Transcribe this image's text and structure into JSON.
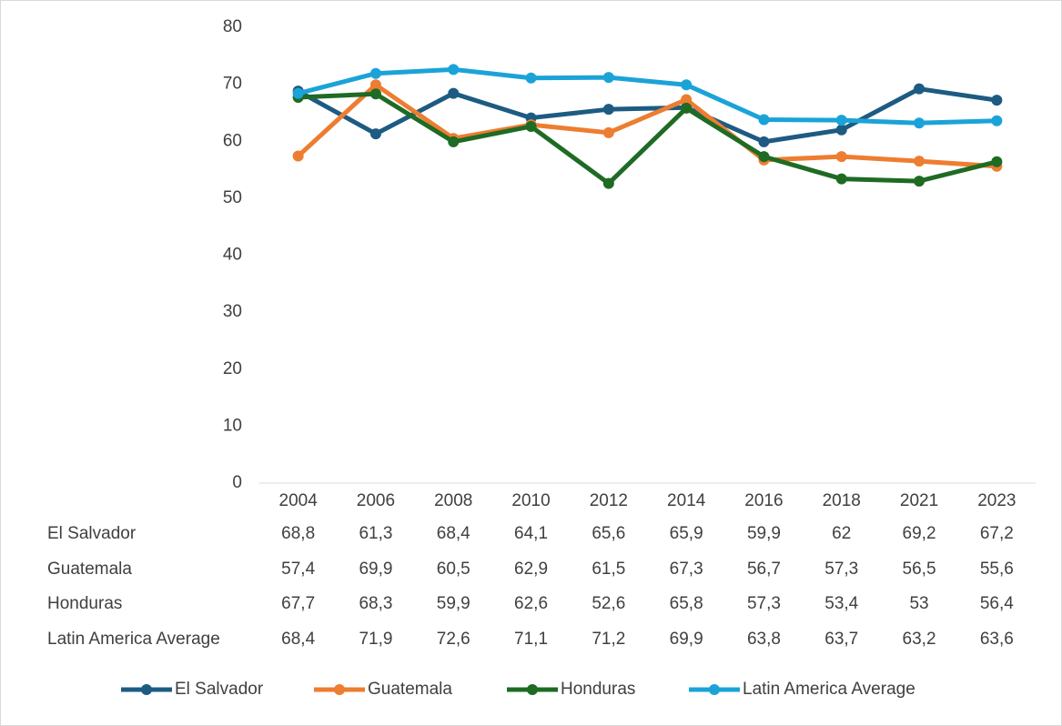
{
  "chart_data": {
    "type": "line",
    "categories": [
      "2004",
      "2006",
      "2008",
      "2010",
      "2012",
      "2014",
      "2016",
      "2018",
      "2021",
      "2023"
    ],
    "series": [
      {
        "name": "El Salvador",
        "color": "#1d5b82",
        "values": [
          68.8,
          61.3,
          68.4,
          64.1,
          65.6,
          65.9,
          59.9,
          62,
          69.2,
          67.2
        ],
        "value_labels": [
          "68,8",
          "61,3",
          "68,4",
          "64,1",
          "65,6",
          "65,9",
          "59,9",
          "62",
          "69,2",
          "67,2"
        ]
      },
      {
        "name": "Guatemala",
        "color": "#ed7d31",
        "values": [
          57.4,
          69.9,
          60.5,
          62.9,
          61.5,
          67.3,
          56.7,
          57.3,
          56.5,
          55.6
        ],
        "value_labels": [
          "57,4",
          "69,9",
          "60,5",
          "62,9",
          "61,5",
          "67,3",
          "56,7",
          "57,3",
          "56,5",
          "55,6"
        ]
      },
      {
        "name": "Honduras",
        "color": "#1e6b24",
        "values": [
          67.7,
          68.3,
          59.9,
          62.6,
          52.6,
          65.8,
          57.3,
          53.4,
          53,
          56.4
        ],
        "value_labels": [
          "67,7",
          "68,3",
          "59,9",
          "62,6",
          "52,6",
          "65,8",
          "57,3",
          "53,4",
          "53",
          "56,4"
        ]
      },
      {
        "name": "Latin America Average",
        "color": "#1ba3d8",
        "values": [
          68.4,
          71.9,
          72.6,
          71.1,
          71.2,
          69.9,
          63.8,
          63.7,
          63.2,
          63.6
        ],
        "value_labels": [
          "68,4",
          "71,9",
          "72,6",
          "71,1",
          "71,2",
          "69,9",
          "63,8",
          "63,7",
          "63,2",
          "63,6"
        ]
      }
    ],
    "ylim": [
      0,
      80
    ],
    "yticks": [
      0,
      10,
      20,
      30,
      40,
      50,
      60,
      70,
      80
    ],
    "grid": false,
    "legend": "bottom",
    "data_table": true
  }
}
